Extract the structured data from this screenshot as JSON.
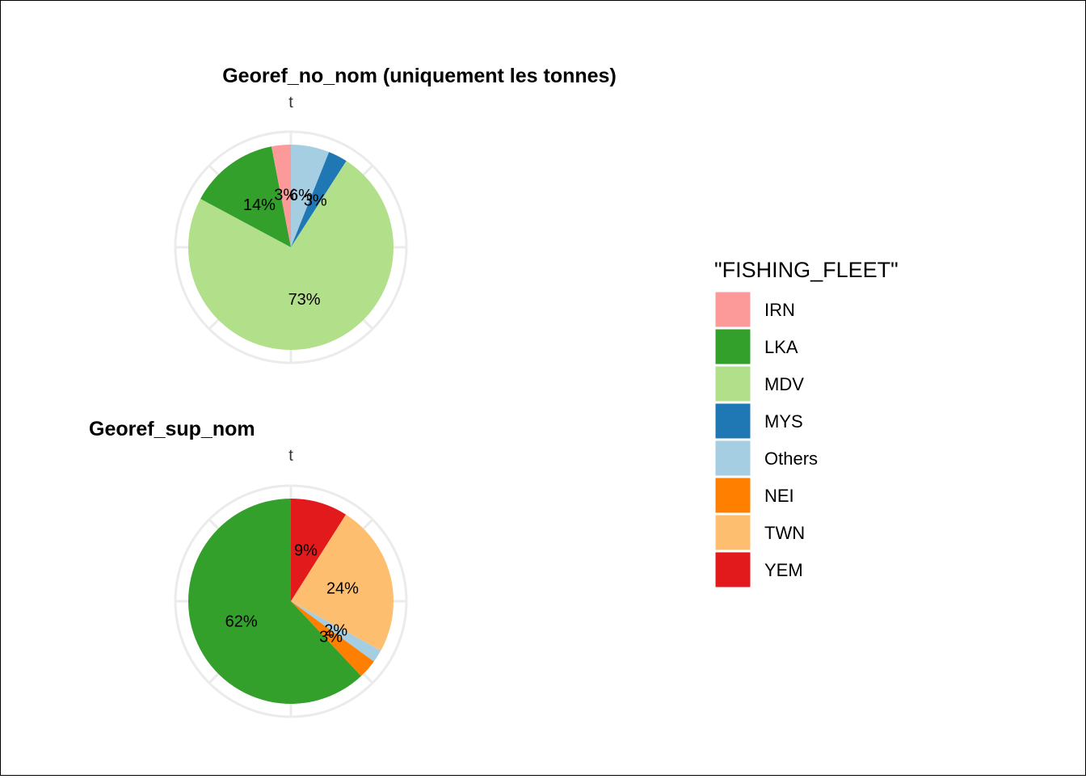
{
  "chart_data": [
    {
      "type": "pie",
      "title": "Georef_no_nom (uniquement les tonnes)",
      "axis_label": "t",
      "slices": [
        {
          "name": "Others",
          "value": 6,
          "label": "6%"
        },
        {
          "name": "MYS",
          "value": 3,
          "label": "3%"
        },
        {
          "name": "MDV",
          "value": 73,
          "label": "73%"
        },
        {
          "name": "LKA",
          "value": 14,
          "label": "14%"
        },
        {
          "name": "IRN",
          "value": 3,
          "label": "3%"
        }
      ]
    },
    {
      "type": "pie",
      "title": "Georef_sup_nom",
      "axis_label": "t",
      "slices": [
        {
          "name": "YEM",
          "value": 9,
          "label": "9%"
        },
        {
          "name": "TWN",
          "value": 24,
          "label": "24%"
        },
        {
          "name": "Others",
          "value": 2,
          "label": "2%"
        },
        {
          "name": "NEI",
          "value": 3,
          "label": "3%"
        },
        {
          "name": "LKA",
          "value": 62,
          "label": "62%"
        }
      ]
    }
  ],
  "legend": {
    "title": "\"FISHING_FLEET\"",
    "items": [
      {
        "name": "IRN",
        "color": "#fb9a99"
      },
      {
        "name": "LKA",
        "color": "#33a02c"
      },
      {
        "name": "MDV",
        "color": "#b2df8a"
      },
      {
        "name": "MYS",
        "color": "#1f78b4"
      },
      {
        "name": "Others",
        "color": "#a6cee3"
      },
      {
        "name": "NEI",
        "color": "#ff7f00"
      },
      {
        "name": "TWN",
        "color": "#fdbf6f"
      },
      {
        "name": "YEM",
        "color": "#e31a1c"
      }
    ]
  }
}
